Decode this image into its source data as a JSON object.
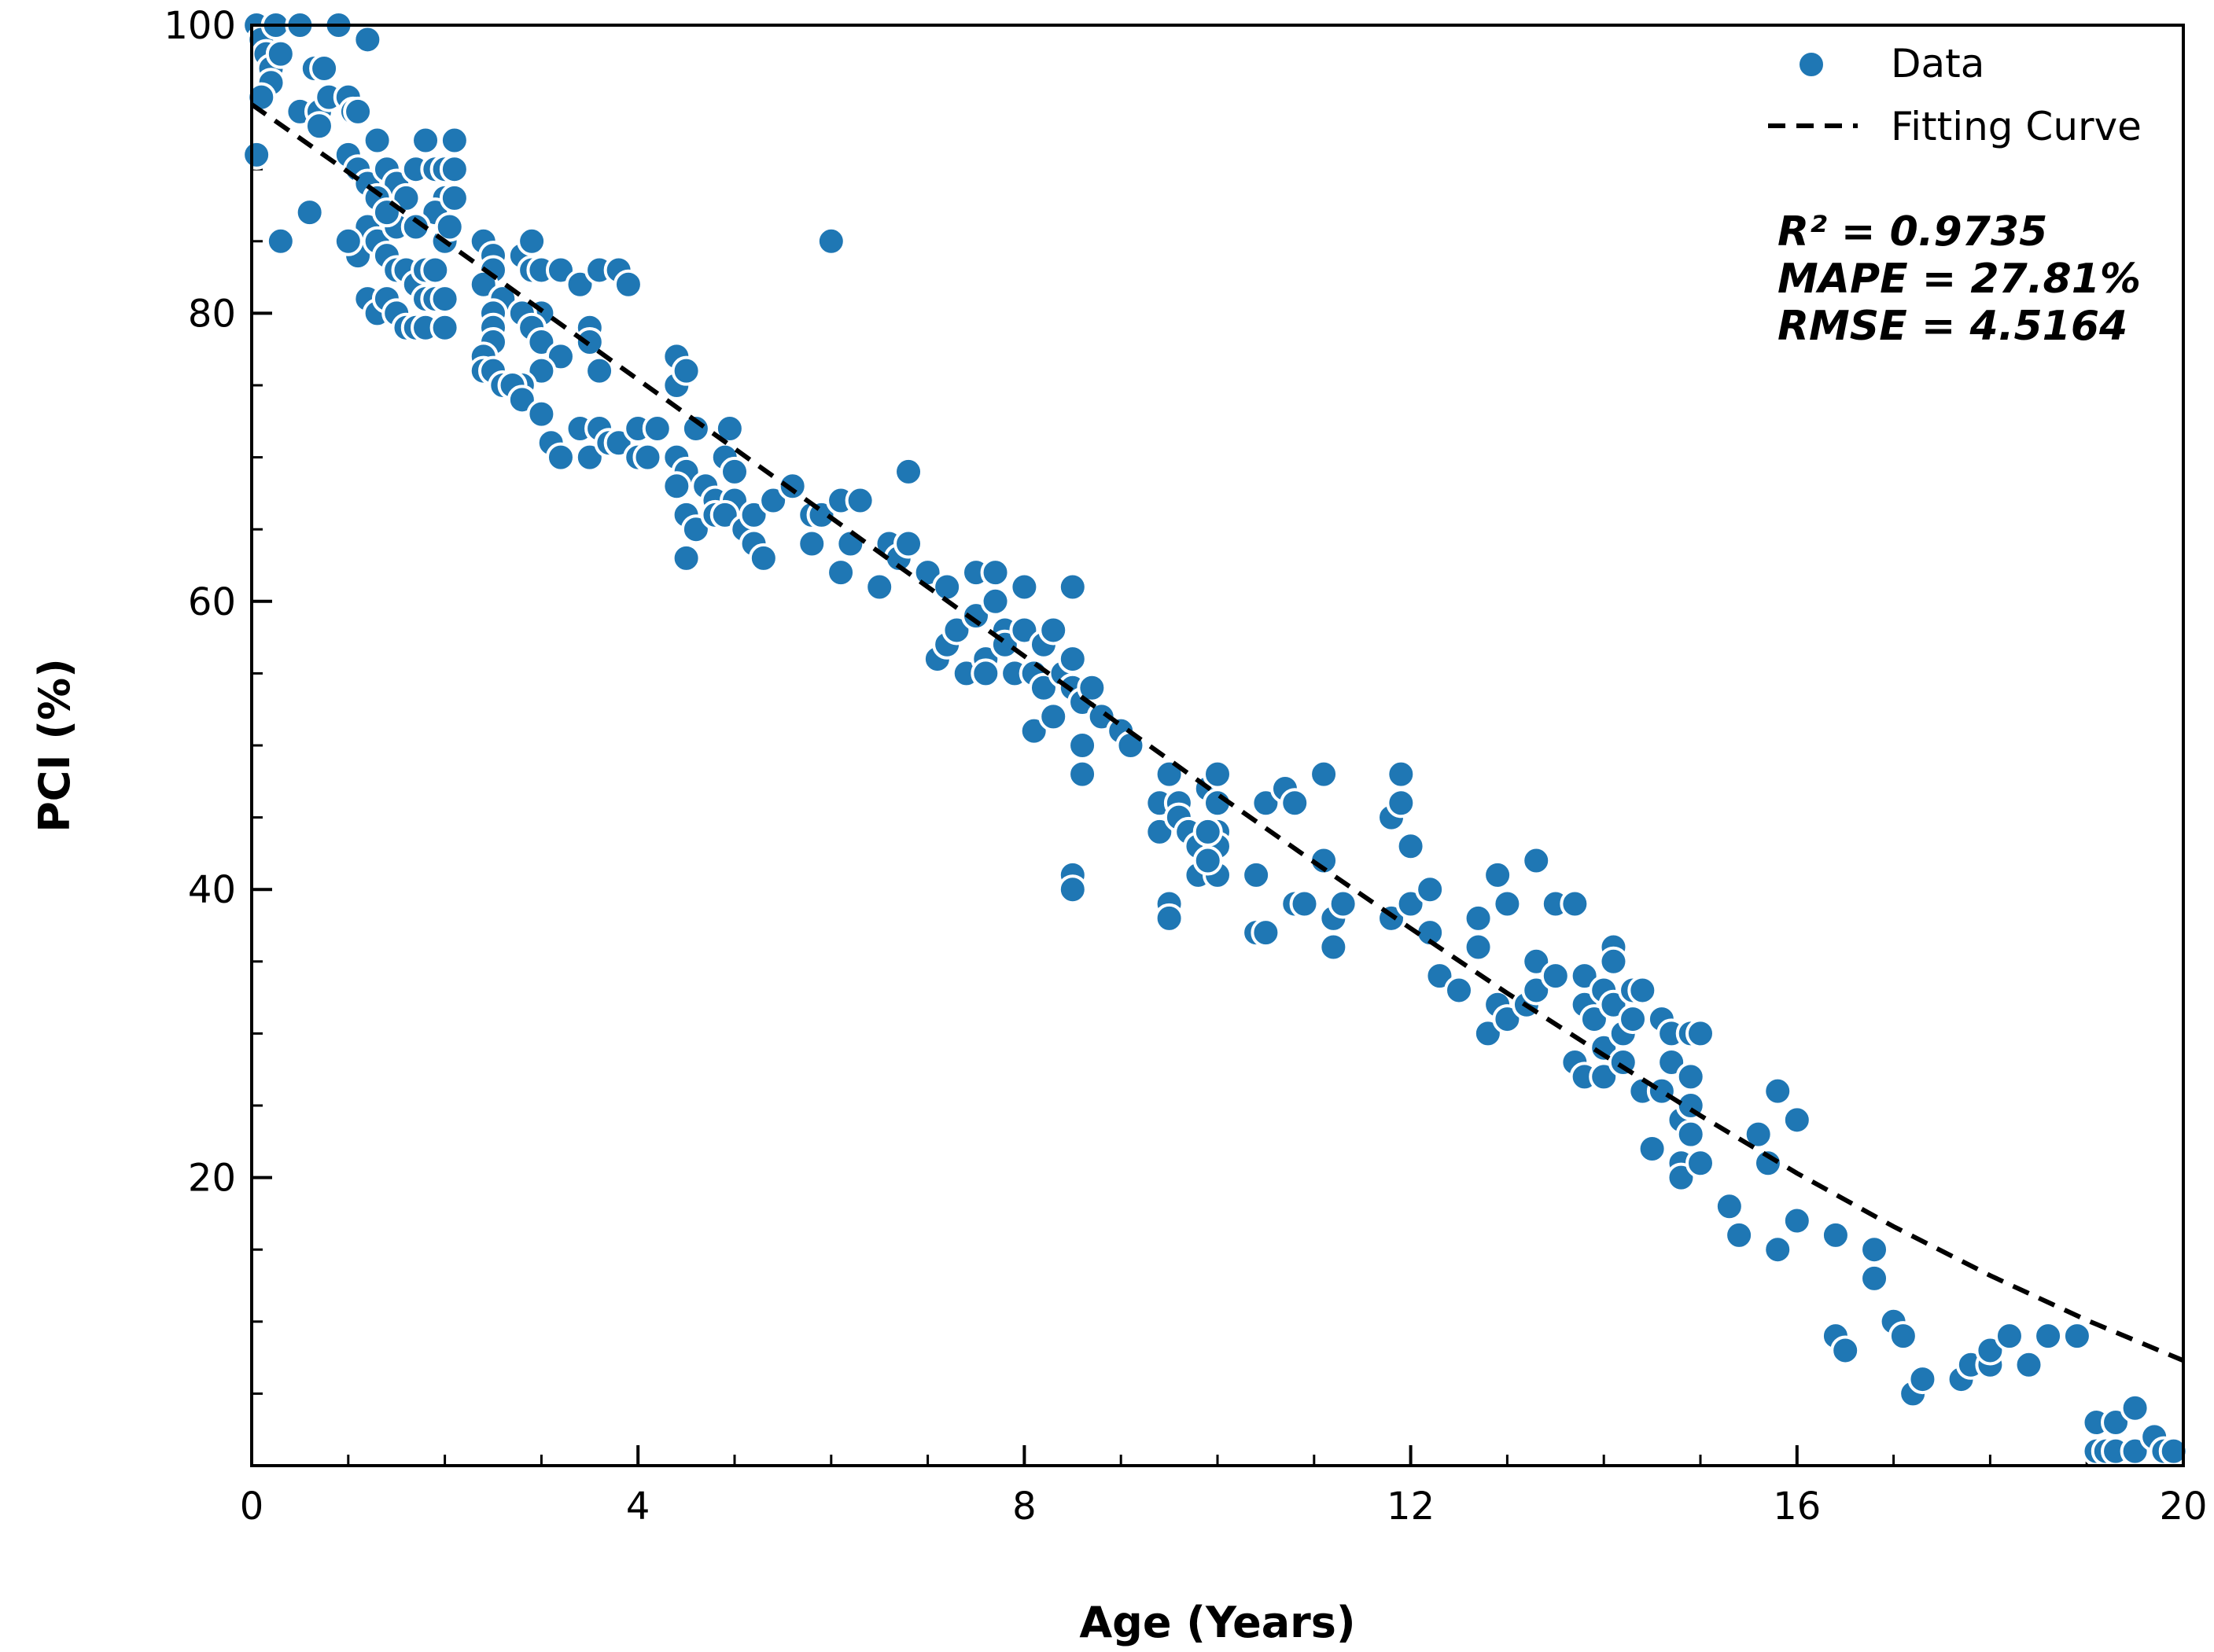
{
  "chart_data": {
    "type": "scatter",
    "title": "",
    "xlabel": "Age (Years)",
    "ylabel": "PCI (%)",
    "xlim": [
      0,
      20
    ],
    "ylim": [
      0,
      100
    ],
    "xticks": [
      0,
      4,
      8,
      12,
      16,
      20
    ],
    "yticks": [
      20,
      40,
      60,
      80,
      100
    ],
    "xtick_labels": [
      "0",
      "4",
      "8",
      "12",
      "16",
      "20"
    ],
    "ytick_labels": [
      "20",
      "40",
      "60",
      "80",
      "100"
    ],
    "x_minor_step": 1,
    "y_minor_step": 5,
    "grid": false,
    "legend": {
      "position": "top-right",
      "entries": [
        {
          "label": "Data",
          "marker": "circle",
          "color": "#1f77b4"
        },
        {
          "label": "Fitting Curve",
          "style": "dashed",
          "color": "#000000"
        }
      ]
    },
    "annotations": [
      "R² = 0.9735",
      "MAPE = 27.81%",
      "RMSE = 4.5164"
    ],
    "colors": {
      "points": "#1f77b4",
      "point_edge": "#ffffff",
      "curve": "#000000",
      "axis": "#000000"
    },
    "fitting_curve": {
      "x": [
        0,
        1,
        2,
        3,
        4,
        5,
        6,
        7,
        8,
        9,
        10,
        11,
        12,
        13,
        14,
        15,
        16,
        17,
        18,
        19,
        20
      ],
      "y": [
        94.5,
        89.8,
        85.0,
        80.2,
        75.4,
        70.6,
        65.8,
        61.0,
        56.2,
        51.4,
        46.6,
        41.9,
        37.3,
        32.8,
        28.5,
        24.3,
        20.3,
        16.6,
        13.2,
        10.1,
        7.3
      ]
    },
    "series": [
      {
        "name": "Data",
        "points": [
          [
            0.05,
            100
          ],
          [
            0.1,
            99
          ],
          [
            0.15,
            98
          ],
          [
            0.2,
            97
          ],
          [
            0.25,
            100
          ],
          [
            0.3,
            98
          ],
          [
            0.2,
            96
          ],
          [
            0.1,
            95
          ],
          [
            0.05,
            91
          ],
          [
            0.3,
            85
          ],
          [
            0.5,
            94
          ],
          [
            0.6,
            87
          ],
          [
            0.65,
            97
          ],
          [
            0.7,
            94
          ],
          [
            0.7,
            93
          ],
          [
            0.75,
            97
          ],
          [
            0.8,
            95
          ],
          [
            0.5,
            100
          ],
          [
            0.9,
            100
          ],
          [
            1.2,
            99
          ],
          [
            1.0,
            95
          ],
          [
            1.05,
            94
          ],
          [
            1.1,
            94
          ],
          [
            1.0,
            91
          ],
          [
            1.1,
            90
          ],
          [
            1.2,
            89
          ],
          [
            1.3,
            92
          ],
          [
            1.4,
            90
          ],
          [
            1.5,
            89
          ],
          [
            1.6,
            88
          ],
          [
            1.7,
            90
          ],
          [
            1.8,
            92
          ],
          [
            1.9,
            90
          ],
          [
            2.0,
            90
          ],
          [
            2.1,
            92
          ],
          [
            2.1,
            90
          ],
          [
            2.0,
            88
          ],
          [
            1.9,
            87
          ],
          [
            1.3,
            88
          ],
          [
            1.2,
            86
          ],
          [
            1.1,
            84
          ],
          [
            1.0,
            85
          ],
          [
            1.3,
            85
          ],
          [
            1.4,
            84
          ],
          [
            1.5,
            83
          ],
          [
            1.6,
            83
          ],
          [
            1.7,
            82
          ],
          [
            1.8,
            83
          ],
          [
            1.9,
            83
          ],
          [
            2.0,
            85
          ],
          [
            2.1,
            88
          ],
          [
            2.05,
            86
          ],
          [
            1.2,
            81
          ],
          [
            1.3,
            80
          ],
          [
            1.4,
            81
          ],
          [
            1.5,
            80
          ],
          [
            1.6,
            79
          ],
          [
            1.7,
            79
          ],
          [
            1.8,
            79
          ],
          [
            1.8,
            81
          ],
          [
            1.9,
            81
          ],
          [
            2.0,
            81
          ],
          [
            2.0,
            79
          ],
          [
            1.5,
            86
          ],
          [
            1.7,
            86
          ],
          [
            1.4,
            87
          ],
          [
            2.4,
            85
          ],
          [
            2.5,
            84
          ],
          [
            2.5,
            83
          ],
          [
            2.4,
            82
          ],
          [
            2.6,
            81
          ],
          [
            2.5,
            80
          ],
          [
            2.5,
            79
          ],
          [
            2.5,
            78
          ],
          [
            2.4,
            77
          ],
          [
            2.4,
            76
          ],
          [
            2.5,
            76
          ],
          [
            2.6,
            75
          ],
          [
            2.8,
            84
          ],
          [
            2.9,
            85
          ],
          [
            2.9,
            83
          ],
          [
            3.0,
            83
          ],
          [
            3.2,
            83
          ],
          [
            3.4,
            82
          ],
          [
            3.0,
            80
          ],
          [
            2.8,
            80
          ],
          [
            2.9,
            79
          ],
          [
            3.0,
            78
          ],
          [
            3.2,
            77
          ],
          [
            3.0,
            76
          ],
          [
            2.8,
            75
          ],
          [
            2.7,
            75
          ],
          [
            2.8,
            74
          ],
          [
            3.0,
            73
          ],
          [
            3.1,
            71
          ],
          [
            3.2,
            70
          ],
          [
            3.4,
            72
          ],
          [
            3.5,
            70
          ],
          [
            3.6,
            72
          ],
          [
            3.5,
            79
          ],
          [
            3.5,
            78
          ],
          [
            3.6,
            76
          ],
          [
            3.6,
            83
          ],
          [
            3.8,
            83
          ],
          [
            3.9,
            82
          ],
          [
            3.7,
            71
          ],
          [
            3.8,
            71
          ],
          [
            4.0,
            72
          ],
          [
            4.0,
            70
          ],
          [
            4.1,
            70
          ],
          [
            4.2,
            72
          ],
          [
            4.4,
            77
          ],
          [
            4.4,
            75
          ],
          [
            4.5,
            76
          ],
          [
            4.4,
            70
          ],
          [
            4.5,
            69
          ],
          [
            4.4,
            68
          ],
          [
            4.6,
            72
          ],
          [
            4.5,
            66
          ],
          [
            4.6,
            65
          ],
          [
            4.5,
            63
          ],
          [
            4.7,
            68
          ],
          [
            4.8,
            67
          ],
          [
            4.8,
            66
          ],
          [
            4.9,
            70
          ],
          [
            4.95,
            72
          ],
          [
            5.0,
            69
          ],
          [
            5.0,
            67
          ],
          [
            4.9,
            66
          ],
          [
            5.1,
            65
          ],
          [
            5.2,
            66
          ],
          [
            5.2,
            64
          ],
          [
            5.3,
            63
          ],
          [
            5.4,
            67
          ],
          [
            5.6,
            68
          ],
          [
            5.8,
            66
          ],
          [
            5.9,
            66
          ],
          [
            5.8,
            64
          ],
          [
            6.0,
            85
          ],
          [
            6.1,
            67
          ],
          [
            6.1,
            62
          ],
          [
            6.2,
            64
          ],
          [
            6.3,
            67
          ],
          [
            6.5,
            61
          ],
          [
            6.6,
            64
          ],
          [
            6.7,
            63
          ],
          [
            6.8,
            64
          ],
          [
            6.8,
            69
          ],
          [
            7.0,
            62
          ],
          [
            7.2,
            61
          ],
          [
            7.1,
            56
          ],
          [
            7.2,
            57
          ],
          [
            7.3,
            58
          ],
          [
            7.4,
            55
          ],
          [
            7.5,
            62
          ],
          [
            7.5,
            59
          ],
          [
            7.6,
            56
          ],
          [
            7.6,
            55
          ],
          [
            7.7,
            60
          ],
          [
            7.7,
            62
          ],
          [
            7.8,
            58
          ],
          [
            7.8,
            57
          ],
          [
            7.9,
            55
          ],
          [
            8.0,
            61
          ],
          [
            8.0,
            58
          ],
          [
            8.1,
            51
          ],
          [
            8.1,
            55
          ],
          [
            8.2,
            57
          ],
          [
            8.2,
            54
          ],
          [
            8.3,
            58
          ],
          [
            8.3,
            52
          ],
          [
            8.4,
            55
          ],
          [
            8.5,
            61
          ],
          [
            8.5,
            56
          ],
          [
            8.5,
            54
          ],
          [
            8.6,
            53
          ],
          [
            8.6,
            50
          ],
          [
            8.6,
            48
          ],
          [
            8.5,
            41
          ],
          [
            8.5,
            40
          ],
          [
            8.7,
            54
          ],
          [
            8.8,
            52
          ],
          [
            9.0,
            51
          ],
          [
            9.1,
            50
          ],
          [
            9.4,
            46
          ],
          [
            9.4,
            44
          ],
          [
            9.5,
            48
          ],
          [
            9.5,
            39
          ],
          [
            9.5,
            38
          ],
          [
            9.6,
            46
          ],
          [
            9.6,
            45
          ],
          [
            9.7,
            44
          ],
          [
            9.8,
            43
          ],
          [
            9.8,
            41
          ],
          [
            9.9,
            47
          ],
          [
            10.0,
            48
          ],
          [
            10.0,
            46
          ],
          [
            10.0,
            44
          ],
          [
            10.0,
            43
          ],
          [
            10.0,
            41
          ],
          [
            9.9,
            42
          ],
          [
            9.9,
            44
          ],
          [
            10.4,
            41
          ],
          [
            10.4,
            37
          ],
          [
            10.5,
            37
          ],
          [
            10.5,
            46
          ],
          [
            10.7,
            47
          ],
          [
            10.8,
            46
          ],
          [
            10.8,
            39
          ],
          [
            10.9,
            39
          ],
          [
            11.1,
            48
          ],
          [
            11.1,
            42
          ],
          [
            11.2,
            36
          ],
          [
            11.2,
            38
          ],
          [
            11.3,
            39
          ],
          [
            11.8,
            45
          ],
          [
            11.9,
            48
          ],
          [
            11.9,
            46
          ],
          [
            12.0,
            43
          ],
          [
            11.8,
            38
          ],
          [
            12.0,
            39
          ],
          [
            12.2,
            40
          ],
          [
            12.2,
            37
          ],
          [
            12.3,
            34
          ],
          [
            12.5,
            33
          ],
          [
            12.7,
            38
          ],
          [
            12.7,
            36
          ],
          [
            12.8,
            30
          ],
          [
            12.9,
            41
          ],
          [
            12.9,
            32
          ],
          [
            13.0,
            39
          ],
          [
            13.0,
            31
          ],
          [
            13.2,
            32
          ],
          [
            13.3,
            42
          ],
          [
            13.3,
            35
          ],
          [
            13.3,
            33
          ],
          [
            13.5,
            39
          ],
          [
            13.5,
            34
          ],
          [
            13.7,
            39
          ],
          [
            13.7,
            28
          ],
          [
            13.8,
            34
          ],
          [
            13.8,
            32
          ],
          [
            13.8,
            27
          ],
          [
            13.9,
            31
          ],
          [
            14.0,
            33
          ],
          [
            14.0,
            29
          ],
          [
            14.0,
            27
          ],
          [
            14.1,
            36
          ],
          [
            14.1,
            35
          ],
          [
            14.1,
            32
          ],
          [
            14.2,
            30
          ],
          [
            14.2,
            28
          ],
          [
            14.3,
            33
          ],
          [
            14.3,
            31
          ],
          [
            14.4,
            33
          ],
          [
            14.4,
            26
          ],
          [
            14.5,
            22
          ],
          [
            14.6,
            31
          ],
          [
            14.6,
            26
          ],
          [
            14.7,
            30
          ],
          [
            14.7,
            28
          ],
          [
            14.8,
            24
          ],
          [
            14.8,
            21
          ],
          [
            14.8,
            20
          ],
          [
            14.9,
            30
          ],
          [
            14.9,
            27
          ],
          [
            14.9,
            25
          ],
          [
            14.9,
            23
          ],
          [
            15.0,
            30
          ],
          [
            15.0,
            21
          ],
          [
            15.3,
            18
          ],
          [
            15.4,
            16
          ],
          [
            15.6,
            23
          ],
          [
            15.7,
            21
          ],
          [
            15.8,
            26
          ],
          [
            15.8,
            15
          ],
          [
            16.0,
            24
          ],
          [
            16.0,
            17
          ],
          [
            16.4,
            16
          ],
          [
            16.4,
            9
          ],
          [
            16.5,
            8
          ],
          [
            16.8,
            15
          ],
          [
            16.8,
            13
          ],
          [
            17.0,
            10
          ],
          [
            17.1,
            9
          ],
          [
            17.2,
            5
          ],
          [
            17.3,
            6
          ],
          [
            17.7,
            6
          ],
          [
            17.8,
            7
          ],
          [
            18.0,
            7
          ],
          [
            18.0,
            8
          ],
          [
            18.2,
            9
          ],
          [
            18.4,
            7
          ],
          [
            18.6,
            9
          ],
          [
            18.9,
            9
          ],
          [
            19.1,
            3
          ],
          [
            19.1,
            1
          ],
          [
            19.2,
            1
          ],
          [
            19.3,
            3
          ],
          [
            19.3,
            1
          ],
          [
            19.5,
            4
          ],
          [
            19.5,
            1
          ],
          [
            19.7,
            2
          ],
          [
            19.8,
            1
          ],
          [
            19.9,
            1
          ]
        ]
      }
    ]
  }
}
